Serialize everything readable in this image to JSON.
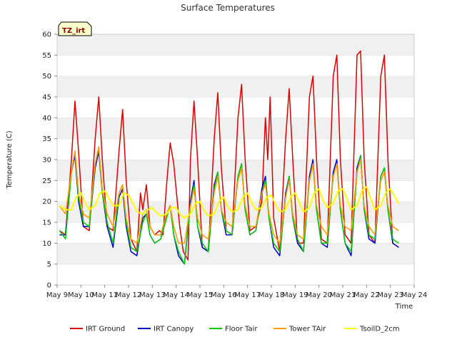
{
  "chart_data": {
    "type": "line",
    "title": "Surface Temperatures",
    "xlabel": "Time",
    "ylabel": "Temperature (C)",
    "badge": "TZ_irt",
    "xlim": [
      9,
      24
    ],
    "ylim": [
      0,
      60
    ],
    "grid": "horizontal bands",
    "legend_position": "bottom",
    "x_tick_values": [
      9,
      10,
      11,
      12,
      13,
      14,
      15,
      16,
      17,
      18,
      19,
      20,
      21,
      22,
      23,
      24
    ],
    "x_tick_labels": [
      "May 9",
      "May 10",
      "May 11",
      "May 12",
      "May 13",
      "May 14",
      "May 15",
      "May 16",
      "May 17",
      "May 18",
      "May 19",
      "May 20",
      "May 21",
      "May 22",
      "May 23",
      "May 24"
    ],
    "y_tick_values": [
      0,
      5,
      10,
      15,
      20,
      25,
      30,
      35,
      40,
      45,
      50,
      55,
      60
    ],
    "y_tick_labels": [
      "0",
      "5",
      "10",
      "15",
      "20",
      "25",
      "30",
      "35",
      "40",
      "45",
      "50",
      "55",
      "60"
    ],
    "x_unit": "day of May",
    "series": [
      {
        "name": "IRT Ground",
        "color": "#dd0000",
        "x": [
          9.1,
          9.35,
          9.6,
          9.75,
          9.9,
          10.1,
          10.35,
          10.6,
          10.75,
          10.9,
          11.1,
          11.35,
          11.6,
          11.75,
          11.9,
          12.1,
          12.35,
          12.5,
          12.6,
          12.75,
          12.9,
          13.1,
          13.3,
          13.45,
          13.6,
          13.75,
          13.9,
          14.05,
          14.15,
          14.3,
          14.5,
          14.6,
          14.75,
          14.9,
          15.1,
          15.35,
          15.6,
          15.75,
          15.9,
          16.1,
          16.35,
          16.6,
          16.75,
          16.9,
          17.1,
          17.35,
          17.6,
          17.75,
          17.85,
          17.95,
          18.1,
          18.35,
          18.6,
          18.75,
          18.9,
          19.1,
          19.35,
          19.6,
          19.75,
          19.9,
          20.1,
          20.35,
          20.6,
          20.75,
          20.9,
          21.1,
          21.35,
          21.6,
          21.75,
          21.9,
          22.1,
          22.35,
          22.6,
          22.75,
          22.9,
          23.1,
          23.35
        ],
        "y": [
          13,
          12,
          30,
          44,
          32,
          14,
          13,
          35,
          45,
          30,
          14,
          13,
          32,
          42,
          25,
          11,
          8,
          22,
          18,
          24,
          14,
          12,
          13,
          12,
          24,
          34,
          29,
          20,
          14,
          8,
          6,
          30,
          44,
          30,
          9,
          8,
          35,
          46,
          28,
          13,
          12,
          40,
          48,
          30,
          13,
          14,
          20,
          40,
          30,
          45,
          16,
          8,
          35,
          47,
          30,
          10,
          10,
          45,
          50,
          30,
          11,
          10,
          50,
          55,
          30,
          12,
          10,
          55,
          56,
          30,
          12,
          10,
          50,
          55,
          30,
          10,
          9
        ]
      },
      {
        "name": "IRT Canopy",
        "color": "#0000cc",
        "x": [
          9.1,
          9.35,
          9.6,
          9.75,
          9.9,
          10.1,
          10.35,
          10.6,
          10.75,
          10.9,
          11.1,
          11.35,
          11.6,
          11.75,
          11.9,
          12.1,
          12.35,
          12.6,
          12.75,
          12.9,
          13.1,
          13.35,
          13.6,
          13.75,
          13.9,
          14.1,
          14.35,
          14.6,
          14.75,
          14.9,
          15.1,
          15.35,
          15.6,
          15.75,
          15.9,
          16.1,
          16.35,
          16.6,
          16.75,
          16.9,
          17.1,
          17.35,
          17.6,
          17.75,
          17.9,
          18.1,
          18.35,
          18.6,
          18.75,
          18.9,
          19.1,
          19.35,
          19.6,
          19.75,
          19.9,
          20.1,
          20.35,
          20.6,
          20.75,
          20.9,
          21.1,
          21.35,
          21.6,
          21.75,
          21.9,
          22.1,
          22.35,
          22.6,
          22.75,
          22.9,
          23.1,
          23.35
        ],
        "y": [
          12,
          12,
          27,
          31,
          20,
          14,
          14,
          28,
          32,
          22,
          14,
          9,
          21,
          23,
          14,
          8,
          7,
          16,
          17,
          12,
          10,
          11,
          17,
          19,
          12,
          7,
          5,
          20,
          25,
          14,
          9,
          8,
          24,
          27,
          18,
          12,
          12,
          26,
          29,
          18,
          12,
          13,
          23,
          26,
          16,
          9,
          7,
          22,
          26,
          16,
          10,
          8,
          26,
          30,
          18,
          10,
          9,
          27,
          30,
          18,
          10,
          7,
          28,
          31,
          18,
          11,
          10,
          26,
          28,
          18,
          10,
          9
        ]
      },
      {
        "name": "Floor Tair",
        "color": "#00cc00",
        "x": [
          9.1,
          9.35,
          9.6,
          9.75,
          9.9,
          10.1,
          10.35,
          10.6,
          10.75,
          10.9,
          11.1,
          11.35,
          11.6,
          11.75,
          11.9,
          12.1,
          12.35,
          12.6,
          12.75,
          12.9,
          13.1,
          13.35,
          13.6,
          13.75,
          13.9,
          14.1,
          14.35,
          14.6,
          14.75,
          14.9,
          15.1,
          15.35,
          15.6,
          15.75,
          15.9,
          16.1,
          16.35,
          16.6,
          16.75,
          16.9,
          17.1,
          17.35,
          17.6,
          17.75,
          17.9,
          18.1,
          18.35,
          18.6,
          18.75,
          18.9,
          19.1,
          19.35,
          19.6,
          19.75,
          19.9,
          20.1,
          20.35,
          20.6,
          20.75,
          20.9,
          21.1,
          21.35,
          21.6,
          21.75,
          21.9,
          22.1,
          22.35,
          22.6,
          22.75,
          22.9,
          23.1,
          23.35
        ],
        "y": [
          13,
          11,
          27,
          32,
          21,
          15,
          14,
          29,
          33,
          22,
          15,
          10,
          22,
          24,
          15,
          9,
          8,
          15,
          17,
          12,
          10,
          11,
          16,
          19,
          12,
          8,
          5,
          19,
          24,
          14,
          10,
          8,
          23,
          27,
          18,
          13,
          12,
          26,
          29,
          18,
          12,
          13,
          22,
          25,
          16,
          10,
          8,
          21,
          26,
          16,
          11,
          8,
          25,
          29,
          18,
          10,
          10,
          26,
          29,
          18,
          10,
          8,
          27,
          31,
          18,
          12,
          11,
          26,
          28,
          18,
          11,
          10
        ]
      },
      {
        "name": "Tower TAir",
        "color": "#ff9900",
        "x": [
          9.1,
          9.35,
          9.6,
          9.75,
          9.9,
          10.1,
          10.35,
          10.6,
          10.75,
          10.9,
          11.1,
          11.35,
          11.6,
          11.75,
          11.9,
          12.1,
          12.35,
          12.6,
          12.75,
          12.9,
          13.1,
          13.35,
          13.6,
          13.75,
          13.9,
          14.1,
          14.35,
          14.6,
          14.75,
          14.9,
          15.1,
          15.35,
          15.6,
          15.75,
          15.9,
          16.1,
          16.35,
          16.6,
          16.75,
          16.9,
          17.1,
          17.35,
          17.6,
          17.75,
          17.9,
          18.1,
          18.35,
          18.6,
          18.75,
          18.9,
          19.1,
          19.35,
          19.6,
          19.75,
          19.9,
          20.1,
          20.35,
          20.6,
          20.75,
          20.9,
          21.1,
          21.35,
          21.6,
          21.75,
          21.9,
          22.1,
          22.35,
          22.6,
          22.75,
          22.9,
          23.1,
          23.35
        ],
        "y": [
          19,
          17,
          27,
          32,
          22,
          17,
          16,
          29,
          33,
          23,
          17,
          14,
          22,
          24,
          16,
          11,
          10,
          17,
          18,
          14,
          12,
          12,
          17,
          19,
          14,
          10,
          10,
          19,
          23,
          16,
          12,
          11,
          22,
          26,
          18,
          15,
          14,
          25,
          28,
          19,
          14,
          14,
          22,
          24,
          17,
          12,
          10,
          21,
          25,
          17,
          12,
          11,
          25,
          29,
          19,
          14,
          12,
          26,
          29,
          19,
          14,
          13,
          27,
          30,
          19,
          14,
          12,
          25,
          27,
          19,
          14,
          13
        ]
      },
      {
        "name": "TsoilD_2cm",
        "color": "#ffff00",
        "x": [
          9.1,
          9.35,
          9.6,
          9.8,
          10.0,
          10.15,
          10.35,
          10.6,
          10.8,
          11.0,
          11.15,
          11.35,
          11.6,
          11.8,
          12.0,
          12.15,
          12.35,
          12.6,
          12.8,
          13.0,
          13.15,
          13.35,
          13.6,
          13.8,
          14.0,
          14.15,
          14.35,
          14.6,
          14.8,
          15.0,
          15.15,
          15.35,
          15.6,
          15.8,
          16.0,
          16.15,
          16.35,
          16.6,
          16.8,
          17.0,
          17.15,
          17.35,
          17.6,
          17.8,
          18.0,
          18.15,
          18.35,
          18.6,
          18.8,
          19.0,
          19.15,
          19.35,
          19.6,
          19.8,
          20.0,
          20.15,
          20.35,
          20.6,
          20.8,
          21.0,
          21.15,
          21.35,
          21.6,
          21.8,
          22.0,
          22.15,
          22.35,
          22.6,
          22.8,
          23.0,
          23.15,
          23.35
        ],
        "y": [
          19,
          18,
          18,
          21,
          22,
          20,
          18,
          19,
          22,
          22.5,
          21,
          19,
          19,
          22,
          21.5,
          20,
          17.5,
          17,
          18,
          18.5,
          17.5,
          16.5,
          17,
          18.5,
          18.5,
          17,
          16,
          17,
          19.5,
          20,
          18,
          16.5,
          17,
          20,
          21,
          19,
          17.5,
          18,
          21,
          22,
          20,
          18,
          18.5,
          21,
          21.5,
          19.5,
          17.5,
          18,
          21,
          22,
          20,
          17.5,
          18.5,
          22,
          23,
          20.5,
          18.5,
          19.5,
          22.5,
          23,
          21,
          18,
          19,
          22.5,
          23.5,
          21,
          18,
          19,
          22,
          23,
          21.5,
          19.5
        ]
      }
    ]
  }
}
